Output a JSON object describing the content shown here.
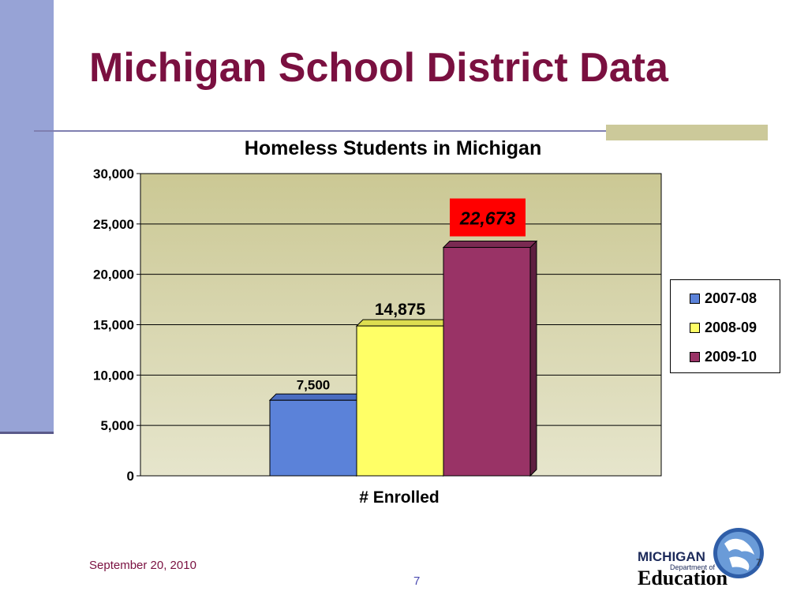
{
  "slide": {
    "title": "Michigan School District Data",
    "date": "September 20, 2010",
    "page_number": "7"
  },
  "logo": {
    "line1": "MICHIGAN",
    "line2": "Department of",
    "line3": "Education",
    "page_mark": "7"
  },
  "colors": {
    "title": "#7a1040",
    "plot_background_top": "#cbc894",
    "plot_background_bottom": "#e6e5cc",
    "highlight_box": "#ff0000"
  },
  "chart_data": {
    "type": "bar",
    "title": "Homeless Students in Michigan",
    "xlabel": "# Enrolled",
    "ylabel": "",
    "categories": [
      "# Enrolled"
    ],
    "series": [
      {
        "name": "2007-08",
        "values": [
          7500
        ],
        "label": "7,500",
        "color": "#5b82d9"
      },
      {
        "name": "2008-09",
        "values": [
          14875
        ],
        "label": "14,875",
        "color": "#ffff66"
      },
      {
        "name": "2009-10",
        "values": [
          22673
        ],
        "label": "22,673",
        "color": "#993366",
        "highlighted": true
      }
    ],
    "ylim": [
      0,
      30000
    ],
    "yticks": [
      0,
      5000,
      10000,
      15000,
      20000,
      25000,
      30000
    ],
    "ytick_labels": [
      "0",
      "5,000",
      "10,000",
      "15,000",
      "20,000",
      "25,000",
      "30,000"
    ],
    "grid": true,
    "legend_position": "right",
    "bar_style": "3d"
  }
}
